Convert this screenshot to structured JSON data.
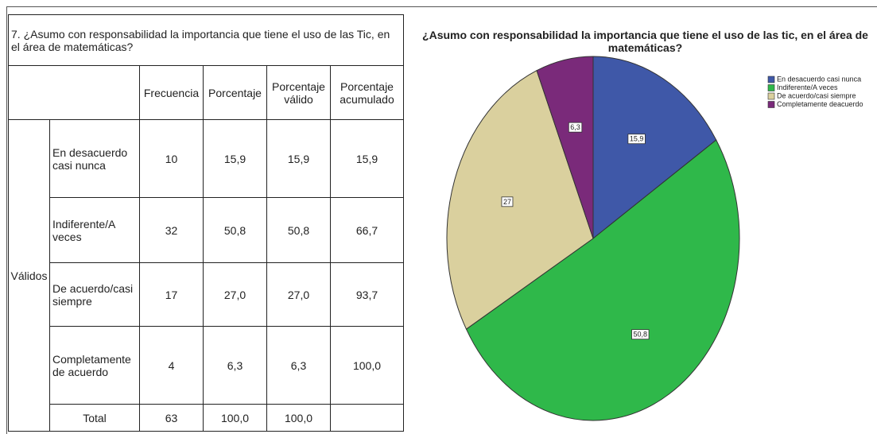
{
  "table": {
    "title": "7. ¿Asumo con responsabilidad la importancia que tiene el uso de las Tic, en el área de matemáticas?",
    "headers": [
      "Frecuencia",
      "Porcentaje",
      "Porcentaje válido",
      "Porcentaje acumulado"
    ],
    "group": "Válidos",
    "rows": [
      [
        "En desacuerdo casi nunca",
        "10",
        "15,9",
        "15,9",
        "15,9"
      ],
      [
        "Indiferente/A veces",
        "32",
        "50,8",
        "50,8",
        "66,7"
      ],
      [
        "De acuerdo/casi siempre",
        "17",
        "27,0",
        "27,0",
        "93,7"
      ],
      [
        "Completamente de acuerdo",
        "4",
        "6,3",
        "6,3",
        "100,0"
      ]
    ],
    "total": [
      "Total",
      "63",
      "100,0",
      "100,0"
    ]
  },
  "chart_data": {
    "type": "pie",
    "title": "¿Asumo con responsabilidad la importancia que tiene el uso de las tic, en el área de matemáticas?",
    "categories": [
      "En desacuerdo casi nunca",
      "Indiferente/A veces",
      "De acuerdo/casi siempre",
      "Completamente deacuerdo"
    ],
    "values": [
      15.9,
      50.8,
      27,
      6.3
    ],
    "value_labels": [
      "15,9",
      "50,8",
      "27",
      "6,3"
    ],
    "colors": [
      "#3f58a8",
      "#2fb84a",
      "#dad09e",
      "#7a2a7a"
    ]
  }
}
